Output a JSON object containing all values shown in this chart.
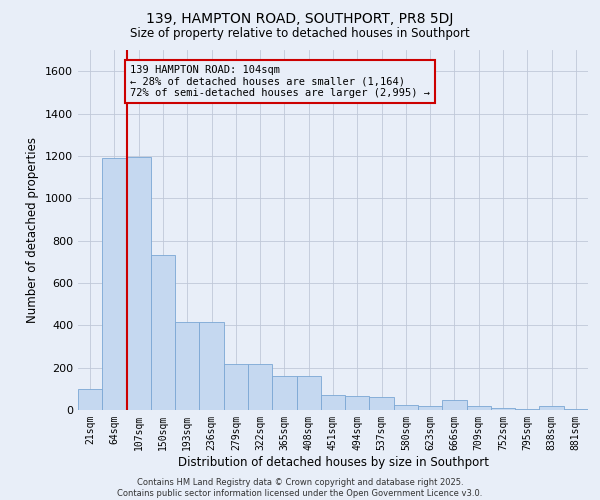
{
  "title": "139, HAMPTON ROAD, SOUTHPORT, PR8 5DJ",
  "subtitle": "Size of property relative to detached houses in Southport",
  "xlabel": "Distribution of detached houses by size in Southport",
  "ylabel": "Number of detached properties",
  "categories": [
    "21sqm",
    "64sqm",
    "107sqm",
    "150sqm",
    "193sqm",
    "236sqm",
    "279sqm",
    "322sqm",
    "365sqm",
    "408sqm",
    "451sqm",
    "494sqm",
    "537sqm",
    "580sqm",
    "623sqm",
    "666sqm",
    "709sqm",
    "752sqm",
    "795sqm",
    "838sqm",
    "881sqm"
  ],
  "values": [
    100,
    1190,
    1195,
    730,
    415,
    415,
    215,
    215,
    160,
    160,
    70,
    65,
    60,
    25,
    20,
    45,
    20,
    10,
    5,
    20,
    5
  ],
  "bar_color": "#c5d8f0",
  "bar_edge_color": "#7ba7d4",
  "grid_color": "#c0c8d8",
  "bg_color": "#e8eef8",
  "vline_color": "#cc0000",
  "vline_x_index": 1.5,
  "annotation_text": "139 HAMPTON ROAD: 104sqm\n← 28% of detached houses are smaller (1,164)\n72% of semi-detached houses are larger (2,995) →",
  "annotation_box_color": "#cc0000",
  "footer_line1": "Contains HM Land Registry data © Crown copyright and database right 2025.",
  "footer_line2": "Contains public sector information licensed under the Open Government Licence v3.0.",
  "ylim": [
    0,
    1700
  ],
  "yticks": [
    0,
    200,
    400,
    600,
    800,
    1000,
    1200,
    1400,
    1600
  ],
  "figsize": [
    6.0,
    5.0
  ],
  "dpi": 100
}
